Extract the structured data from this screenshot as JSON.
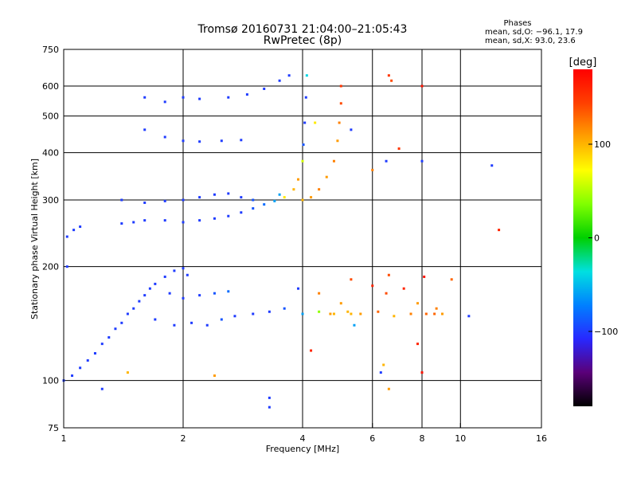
{
  "title_line1": "Tromsø 20160731 21:04:00–21:05:43",
  "title_line2": "RwPretec (8p)",
  "phases_box": {
    "heading": "Phases",
    "line_o": "mean, sd,O: −96.1, 17.9",
    "line_x": "mean, sd,X:  93.0, 23.6"
  },
  "colorbar": {
    "unit": "[deg]",
    "tick_labels": [
      "100",
      "0",
      "−100"
    ],
    "tick_values": [
      100,
      0,
      -100
    ],
    "range": [
      -180,
      180
    ],
    "gradient_colors": [
      "#000000",
      "#5a0078",
      "#2828ff",
      "#0080ff",
      "#00e0e0",
      "#00d000",
      "#80ff00",
      "#ffff00",
      "#ffa000",
      "#ff4000",
      "#ff0000"
    ]
  },
  "chart_data": {
    "type": "scatter",
    "title": "Tromsø 20160731 21:04:00–21:05:43",
    "subtitle": "RwPretec (8p)",
    "xlabel": "Frequency [MHz]",
    "ylabel": "Stationary phase Virtual Height [km]",
    "xscale": "log2",
    "yscale": "log",
    "xlim": [
      1,
      16
    ],
    "ylim": [
      75,
      750
    ],
    "x_ticks": [
      1,
      2,
      4,
      6,
      8,
      10,
      16
    ],
    "x_tick_labels": [
      "1",
      "2",
      "4",
      "6",
      "8",
      "10",
      "16"
    ],
    "y_ticks": [
      75,
      100,
      200,
      300,
      400,
      500,
      600,
      750
    ],
    "y_tick_labels": [
      "75",
      "100",
      "200",
      "300",
      "400",
      "500",
      "600",
      "750"
    ],
    "grid": true,
    "color_encodes": "phase [deg]",
    "series": [
      {
        "points": [
          [
            1.0,
            100,
            -100
          ],
          [
            1.05,
            103,
            -100
          ],
          [
            1.1,
            108,
            -100
          ],
          [
            1.15,
            113,
            -100
          ],
          [
            1.2,
            118,
            -100
          ],
          [
            1.25,
            125,
            -100
          ],
          [
            1.3,
            130,
            -100
          ],
          [
            1.35,
            137,
            -100
          ],
          [
            1.4,
            142,
            -100
          ],
          [
            1.45,
            150,
            -100
          ],
          [
            1.5,
            155,
            -100
          ],
          [
            1.55,
            162,
            -100
          ],
          [
            1.6,
            168,
            -100
          ],
          [
            1.65,
            175,
            -100
          ],
          [
            1.7,
            180,
            -100
          ],
          [
            1.8,
            188,
            -100
          ],
          [
            1.9,
            195,
            -100
          ],
          [
            2.0,
            198,
            -100
          ],
          [
            2.05,
            190,
            -100
          ],
          [
            1.85,
            170,
            -100
          ],
          [
            2.0,
            165,
            -100
          ],
          [
            2.2,
            168,
            -100
          ],
          [
            2.4,
            170,
            -90
          ],
          [
            2.6,
            172,
            -80
          ],
          [
            1.7,
            145,
            -100
          ],
          [
            1.9,
            140,
            -100
          ],
          [
            2.1,
            142,
            -100
          ],
          [
            2.3,
            140,
            -100
          ],
          [
            2.5,
            145,
            -90
          ],
          [
            2.7,
            148,
            -100
          ],
          [
            3.0,
            150,
            -100
          ],
          [
            3.3,
            152,
            -100
          ],
          [
            3.6,
            155,
            -90
          ],
          [
            4.0,
            150,
            -60
          ],
          [
            4.4,
            152,
            40
          ],
          [
            4.8,
            150,
            100
          ],
          [
            5.2,
            152,
            100
          ],
          [
            5.6,
            150,
            110
          ],
          [
            6.2,
            152,
            130
          ],
          [
            6.8,
            148,
            100
          ],
          [
            7.5,
            150,
            120
          ],
          [
            8.2,
            150,
            130
          ],
          [
            9.0,
            150,
            110
          ],
          [
            10.5,
            148,
            -100
          ],
          [
            1.4,
            260,
            -100
          ],
          [
            1.5,
            262,
            -100
          ],
          [
            1.6,
            265,
            -100
          ],
          [
            1.8,
            265,
            -100
          ],
          [
            2.0,
            262,
            -100
          ],
          [
            2.2,
            265,
            -100
          ],
          [
            2.4,
            268,
            -100
          ],
          [
            2.6,
            272,
            -100
          ],
          [
            2.8,
            278,
            -100
          ],
          [
            3.0,
            285,
            -90
          ],
          [
            3.2,
            292,
            -80
          ],
          [
            3.4,
            298,
            -60
          ],
          [
            3.6,
            305,
            80
          ],
          [
            3.8,
            320,
            100
          ],
          [
            3.9,
            340,
            110
          ],
          [
            4.0,
            380,
            60
          ],
          [
            4.02,
            420,
            -90
          ],
          [
            4.05,
            480,
            -100
          ],
          [
            4.08,
            560,
            -100
          ],
          [
            4.1,
            640,
            -40
          ],
          [
            1.4,
            300,
            -100
          ],
          [
            1.6,
            295,
            -100
          ],
          [
            1.8,
            298,
            -100
          ],
          [
            2.0,
            300,
            -100
          ],
          [
            2.2,
            305,
            -100
          ],
          [
            2.4,
            310,
            -100
          ],
          [
            2.6,
            312,
            -100
          ],
          [
            2.8,
            305,
            -100
          ],
          [
            3.0,
            300,
            -90
          ],
          [
            3.5,
            310,
            -60
          ],
          [
            4.0,
            300,
            100
          ],
          [
            4.2,
            305,
            110
          ],
          [
            4.4,
            320,
            120
          ],
          [
            4.6,
            345,
            110
          ],
          [
            4.8,
            380,
            120
          ],
          [
            4.9,
            430,
            110
          ],
          [
            4.95,
            480,
            120
          ],
          [
            5.0,
            540,
            140
          ],
          [
            5.0,
            600,
            150
          ],
          [
            1.6,
            560,
            -100
          ],
          [
            1.8,
            545,
            -100
          ],
          [
            2.0,
            560,
            -100
          ],
          [
            2.2,
            555,
            -100
          ],
          [
            2.6,
            560,
            -100
          ],
          [
            2.9,
            570,
            -100
          ],
          [
            3.2,
            590,
            -100
          ],
          [
            3.5,
            620,
            -100
          ],
          [
            3.7,
            640,
            -100
          ],
          [
            1.6,
            460,
            -100
          ],
          [
            1.8,
            440,
            -100
          ],
          [
            2.0,
            430,
            -100
          ],
          [
            2.2,
            428,
            -100
          ],
          [
            2.5,
            430,
            -100
          ],
          [
            2.8,
            432,
            -100
          ],
          [
            4.3,
            480,
            80
          ],
          [
            5.3,
            460,
            -100
          ],
          [
            1.02,
            240,
            -100
          ],
          [
            1.06,
            250,
            -100
          ],
          [
            1.1,
            255,
            -100
          ],
          [
            1.02,
            200,
            -100
          ],
          [
            1.25,
            95,
            -100
          ],
          [
            1.45,
            105,
            100
          ],
          [
            2.4,
            103,
            110
          ],
          [
            3.3,
            90,
            -100
          ],
          [
            3.3,
            85,
            -100
          ],
          [
            3.9,
            175,
            -100
          ],
          [
            4.4,
            170,
            120
          ],
          [
            4.7,
            150,
            110
          ],
          [
            5.3,
            185,
            140
          ],
          [
            5.0,
            160,
            110
          ],
          [
            5.4,
            140,
            -60
          ],
          [
            6.0,
            178,
            160
          ],
          [
            6.5,
            170,
            140
          ],
          [
            6.6,
            190,
            140
          ],
          [
            7.2,
            175,
            160
          ],
          [
            7.8,
            160,
            110
          ],
          [
            8.1,
            188,
            170
          ],
          [
            8.6,
            150,
            130
          ],
          [
            9.5,
            185,
            130
          ],
          [
            4.2,
            120,
            160
          ],
          [
            6.4,
            110,
            100
          ],
          [
            6.3,
            105,
            -100
          ],
          [
            6.7,
            620,
            140
          ],
          [
            6.6,
            640,
            150
          ],
          [
            8.0,
            600,
            170
          ],
          [
            7.0,
            410,
            150
          ],
          [
            6.5,
            380,
            -100
          ],
          [
            8.0,
            380,
            -100
          ],
          [
            6.0,
            360,
            120
          ],
          [
            8.0,
            105,
            170
          ],
          [
            6.6,
            95,
            110
          ],
          [
            12.0,
            370,
            -100
          ],
          [
            12.5,
            250,
            160
          ],
          [
            7.8,
            125,
            160
          ],
          [
            8.7,
            155,
            120
          ],
          [
            5.3,
            150,
            100
          ]
        ]
      }
    ]
  }
}
